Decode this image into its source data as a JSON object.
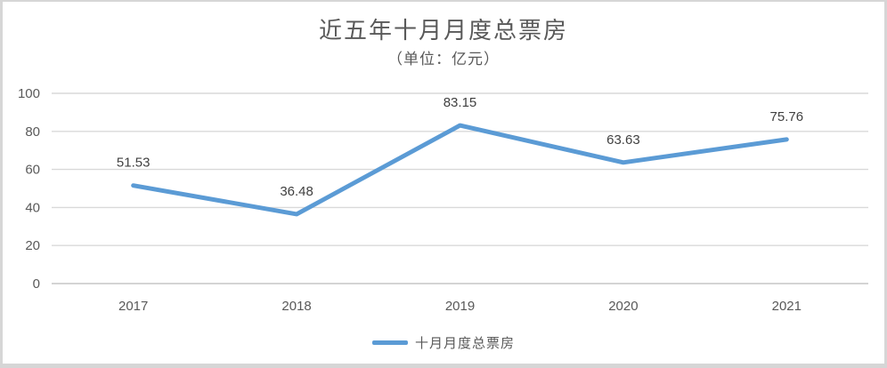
{
  "chart_data": {
    "type": "line",
    "title": "近五年十月月度总票房",
    "subtitle": "（单位：亿元）",
    "categories": [
      "2017",
      "2018",
      "2019",
      "2020",
      "2021"
    ],
    "series": [
      {
        "name": "十月月度总票房",
        "values": [
          51.53,
          36.48,
          83.15,
          63.63,
          75.76
        ]
      }
    ],
    "data_labels": [
      "51.53",
      "36.48",
      "83.15",
      "63.63",
      "75.76"
    ],
    "yticks": [
      0,
      20,
      40,
      60,
      80,
      100
    ],
    "ylim": [
      0,
      100
    ],
    "grid": true,
    "legend_position": "bottom-center",
    "colors": {
      "line": "#5B9BD5",
      "gridline": "#D9D9D9",
      "zero_axis_line": "#C6C6C6",
      "tick_label": "#595959",
      "data_label": "#404040",
      "title": "#595959",
      "frame_border": "#D6D6D6"
    }
  }
}
